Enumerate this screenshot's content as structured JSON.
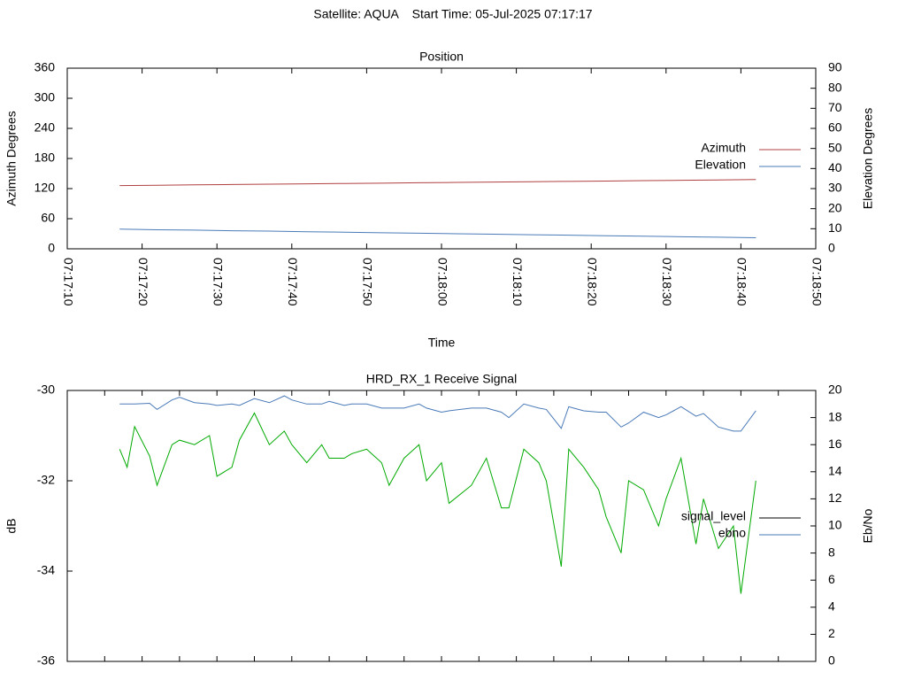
{
  "title": "Satellite: AQUA    Start Time: 05-Jul-2025 07:17:17",
  "chart_data": [
    {
      "type": "line",
      "title": "Position",
      "x_label": "Time",
      "y_label": "Azimuth Degrees",
      "y2_label": "Elevation Degrees",
      "x": [
        "07:17:17",
        "07:17:22",
        "07:17:27",
        "07:17:32",
        "07:17:37",
        "07:17:42",
        "07:17:47",
        "07:17:52",
        "07:17:57",
        "07:18:02",
        "07:18:07",
        "07:18:12",
        "07:18:17",
        "07:18:22",
        "07:18:27",
        "07:18:32",
        "07:18:37",
        "07:18:42"
      ],
      "series": [
        {
          "name": "Azimuth",
          "color": "#b04040",
          "values": [
            126,
            126.7,
            127.4,
            128.1,
            128.8,
            129.5,
            130.2,
            130.9,
            131.6,
            132.3,
            133,
            133.7,
            134.4,
            135.1,
            135.8,
            136.5,
            137.2,
            138
          ]
        },
        {
          "name": "Elevation",
          "color": "#4a7ab8",
          "axis": "y2",
          "values": [
            9.8,
            9.5,
            9.3,
            9.0,
            8.8,
            8.5,
            8.3,
            8.0,
            7.8,
            7.5,
            7.3,
            7.0,
            6.8,
            6.5,
            6.3,
            6.0,
            5.8,
            5.5
          ]
        }
      ],
      "xlim": [
        "07:17:10",
        "07:18:50"
      ],
      "xticks": [
        "07:17:10",
        "07:17:20",
        "07:17:30",
        "07:17:40",
        "07:17:50",
        "07:18:00",
        "07:18:10",
        "07:18:20",
        "07:18:30",
        "07:18:40",
        "07:18:50"
      ],
      "xtick_labels": true,
      "ylim": [
        0,
        360
      ],
      "yticks": [
        0,
        60,
        120,
        180,
        240,
        300,
        360
      ],
      "y2lim": [
        0,
        90
      ],
      "y2ticks": [
        0,
        10,
        20,
        30,
        40,
        50,
        60,
        70,
        80,
        90
      ],
      "legend": "right"
    },
    {
      "type": "line",
      "title": "HRD_RX_1 Receive Signal",
      "y_label": "dB",
      "y2_label": "Eb/No",
      "x": [
        "07:17:17",
        "07:17:18",
        "07:17:19",
        "07:17:21",
        "07:17:22",
        "07:17:24",
        "07:17:25",
        "07:17:27",
        "07:17:29",
        "07:17:30",
        "07:17:32",
        "07:17:33",
        "07:17:35",
        "07:17:37",
        "07:17:39",
        "07:17:40",
        "07:17:42",
        "07:17:44",
        "07:17:45",
        "07:17:47",
        "07:17:48",
        "07:17:50",
        "07:17:52",
        "07:17:53",
        "07:17:55",
        "07:17:57",
        "07:17:58",
        "07:18:00",
        "07:18:01",
        "07:18:04",
        "07:18:06",
        "07:18:08",
        "07:18:09",
        "07:18:11",
        "07:18:13",
        "07:18:14",
        "07:18:16",
        "07:18:17",
        "07:18:19",
        "07:18:21",
        "07:18:22",
        "07:18:24",
        "07:18:25",
        "07:18:27",
        "07:18:29",
        "07:18:30",
        "07:18:32",
        "07:18:34",
        "07:18:35",
        "07:18:37",
        "07:18:39",
        "07:18:40",
        "07:18:42"
      ],
      "series": [
        {
          "name": "signal_level",
          "color": "#00aa00",
          "legend_color": "#000000",
          "values": [
            -31.3,
            -31.7,
            -30.8,
            -31.45,
            -32.1,
            -31.2,
            -31.1,
            -31.2,
            -31.0,
            -31.9,
            -31.7,
            -31.1,
            -30.5,
            -31.2,
            -30.9,
            -31.2,
            -31.6,
            -31.2,
            -31.5,
            -31.5,
            -31.4,
            -31.3,
            -31.6,
            -32.1,
            -31.5,
            -31.2,
            -32.0,
            -31.6,
            -32.5,
            -32.1,
            -31.5,
            -32.6,
            -32.6,
            -31.3,
            -31.6,
            -32.0,
            -33.9,
            -31.3,
            -31.7,
            -32.2,
            -32.8,
            -33.6,
            -32.0,
            -32.2,
            -33.0,
            -32.4,
            -31.5,
            -33.4,
            -32.4,
            -33.5,
            -33.0,
            -34.5,
            -32.0
          ]
        },
        {
          "name": "ebno",
          "color": "#4a7ab8",
          "axis": "y2",
          "values": [
            19.0,
            19.0,
            19.0,
            19.05,
            18.6,
            19.3,
            19.5,
            19.1,
            19.0,
            18.9,
            19.0,
            18.9,
            19.4,
            19.1,
            19.6,
            19.3,
            19.0,
            19.0,
            19.2,
            18.9,
            19.0,
            19.0,
            18.7,
            18.7,
            18.7,
            19.0,
            18.7,
            18.4,
            18.5,
            18.7,
            18.7,
            18.4,
            18.0,
            19.0,
            18.7,
            18.6,
            17.2,
            18.8,
            18.5,
            18.4,
            18.4,
            17.3,
            17.6,
            18.4,
            18.0,
            18.2,
            18.8,
            18.1,
            18.3,
            17.3,
            17.0,
            17.0,
            18.5
          ]
        }
      ],
      "xlim": [
        "07:17:10",
        "07:18:50"
      ],
      "xticks": [
        "07:17:10",
        "07:17:15",
        "07:17:20",
        "07:17:25",
        "07:17:30",
        "07:17:35",
        "07:17:40",
        "07:17:45",
        "07:17:50",
        "07:17:55",
        "07:18:00",
        "07:18:05",
        "07:18:10",
        "07:18:15",
        "07:18:20",
        "07:18:25",
        "07:18:30",
        "07:18:35",
        "07:18:40",
        "07:18:45",
        "07:18:50"
      ],
      "xtick_labels": false,
      "ylim": [
        -36,
        -30
      ],
      "yticks": [
        -36,
        -34,
        -32,
        -30
      ],
      "y2lim": [
        0,
        20
      ],
      "y2ticks": [
        0,
        2,
        4,
        6,
        8,
        10,
        12,
        14,
        16,
        18,
        20
      ],
      "legend": "right"
    }
  ]
}
